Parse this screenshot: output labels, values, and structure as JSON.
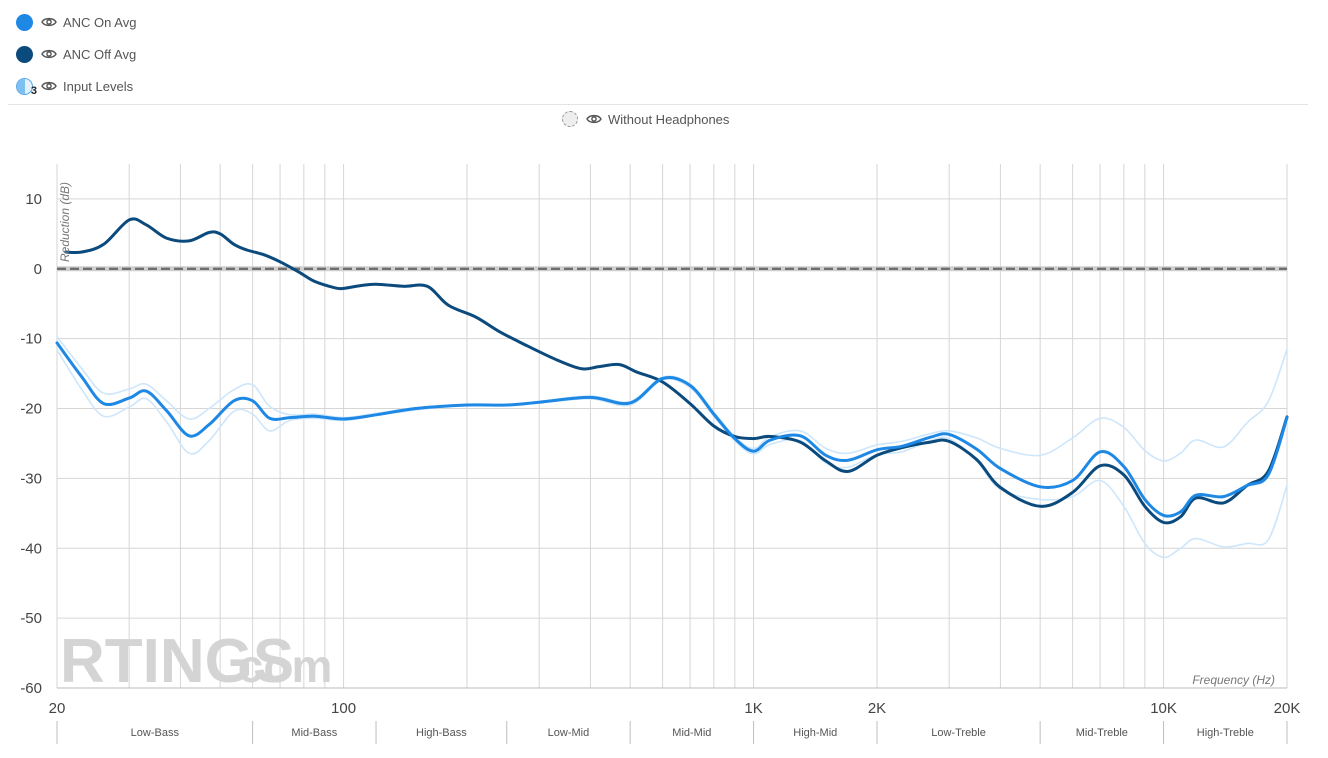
{
  "legend": {
    "series": [
      {
        "label": "ANC On Avg",
        "color": "#1e88e5"
      },
      {
        "label": "ANC Off Avg",
        "color": "#0b4a7d"
      },
      {
        "label": "Input Levels",
        "count": "3",
        "color": "#bfe0fb"
      }
    ],
    "reference": {
      "label": "Without Headphones"
    }
  },
  "watermark": {
    "brand": "RTINGS",
    "suffix": ".com"
  },
  "chart_data": {
    "type": "line",
    "title": "",
    "xlabel": "Frequency (Hz)",
    "ylabel": "Reduction (dB)",
    "xscale": "log",
    "xlim": [
      20,
      20000
    ],
    "ylim": [
      -60,
      15
    ],
    "x_tick_labels": [
      {
        "value": 20,
        "label": "20"
      },
      {
        "value": 100,
        "label": "100"
      },
      {
        "value": 1000,
        "label": "1K"
      },
      {
        "value": 2000,
        "label": "2K"
      },
      {
        "value": 10000,
        "label": "10K"
      },
      {
        "value": 20000,
        "label": "20K"
      }
    ],
    "y_ticks": [
      10,
      0,
      -10,
      -20,
      -30,
      -40,
      -50,
      -60
    ],
    "bands": [
      {
        "label": "Low-Bass",
        "from": 20,
        "to": 60
      },
      {
        "label": "Mid-Bass",
        "from": 60,
        "to": 120
      },
      {
        "label": "High-Bass",
        "from": 120,
        "to": 250
      },
      {
        "label": "Low-Mid",
        "from": 250,
        "to": 500
      },
      {
        "label": "Mid-Mid",
        "from": 500,
        "to": 1000
      },
      {
        "label": "High-Mid",
        "from": 1000,
        "to": 2000
      },
      {
        "label": "Low-Treble",
        "from": 2000,
        "to": 5000
      },
      {
        "label": "Mid-Treble",
        "from": 5000,
        "to": 10000
      },
      {
        "label": "High-Treble",
        "from": 10000,
        "to": 20000
      }
    ],
    "reference_line": {
      "name": "Without Headphones",
      "value": 0
    },
    "series": [
      {
        "name": "Input Levels (upper)",
        "color": "#cde6fb",
        "width": 1.6,
        "points": [
          [
            20,
            -9.7
          ],
          [
            23,
            -14.3
          ],
          [
            26,
            -17.8
          ],
          [
            30,
            -17.2
          ],
          [
            33,
            -16.5
          ],
          [
            37,
            -18.9
          ],
          [
            42,
            -21.5
          ],
          [
            47,
            -20.0
          ],
          [
            54,
            -17.3
          ],
          [
            60,
            -16.6
          ],
          [
            66,
            -19.7
          ],
          [
            74,
            -20.9
          ],
          [
            85,
            -20.8
          ],
          [
            100,
            -21.3
          ],
          [
            120,
            -20.7
          ],
          [
            150,
            -19.9
          ],
          [
            200,
            -19.6
          ],
          [
            250,
            -19.5
          ],
          [
            300,
            -19.0
          ],
          [
            400,
            -18.2
          ],
          [
            500,
            -19.0
          ],
          [
            600,
            -15.5
          ],
          [
            700,
            -16.5
          ],
          [
            800,
            -20.5
          ],
          [
            900,
            -24.0
          ],
          [
            1000,
            -25.7
          ],
          [
            1100,
            -24.0
          ],
          [
            1300,
            -23.2
          ],
          [
            1500,
            -25.7
          ],
          [
            1700,
            -26.4
          ],
          [
            2000,
            -25.2
          ],
          [
            2300,
            -24.7
          ],
          [
            2700,
            -23.6
          ],
          [
            3000,
            -23.2
          ],
          [
            3500,
            -24.2
          ],
          [
            4000,
            -25.7
          ],
          [
            5000,
            -26.7
          ],
          [
            6000,
            -24.2
          ],
          [
            7000,
            -21.4
          ],
          [
            8000,
            -22.7
          ],
          [
            9000,
            -26.0
          ],
          [
            10000,
            -27.5
          ],
          [
            11000,
            -26.4
          ],
          [
            12000,
            -24.5
          ],
          [
            14000,
            -25.5
          ],
          [
            16000,
            -22.0
          ],
          [
            18000,
            -19.0
          ],
          [
            20000,
            -11.5
          ]
        ]
      },
      {
        "name": "Input Levels (lower)",
        "color": "#cde6fb",
        "width": 1.6,
        "points": [
          [
            20,
            -11.6
          ],
          [
            23,
            -17.3
          ],
          [
            26,
            -21.1
          ],
          [
            30,
            -19.8
          ],
          [
            33,
            -18.6
          ],
          [
            37,
            -21.9
          ],
          [
            42,
            -26.4
          ],
          [
            47,
            -24.6
          ],
          [
            54,
            -20.4
          ],
          [
            60,
            -20.8
          ],
          [
            66,
            -23.2
          ],
          [
            74,
            -21.7
          ],
          [
            85,
            -21.4
          ],
          [
            100,
            -21.7
          ],
          [
            120,
            -21.0
          ],
          [
            150,
            -20.2
          ],
          [
            200,
            -19.5
          ],
          [
            250,
            -19.6
          ],
          [
            300,
            -19.2
          ],
          [
            400,
            -18.6
          ],
          [
            500,
            -19.5
          ],
          [
            600,
            -15.9
          ],
          [
            700,
            -17.0
          ],
          [
            800,
            -21.1
          ],
          [
            900,
            -24.6
          ],
          [
            1000,
            -26.5
          ],
          [
            1100,
            -25.1
          ],
          [
            1300,
            -24.6
          ],
          [
            1500,
            -27.8
          ],
          [
            1700,
            -28.4
          ],
          [
            2000,
            -26.6
          ],
          [
            2300,
            -26.2
          ],
          [
            2700,
            -24.6
          ],
          [
            3000,
            -24.3
          ],
          [
            3500,
            -27.5
          ],
          [
            4000,
            -31.6
          ],
          [
            5000,
            -33.0
          ],
          [
            6000,
            -32.6
          ],
          [
            7000,
            -30.3
          ],
          [
            8000,
            -34.0
          ],
          [
            9000,
            -39.3
          ],
          [
            10000,
            -41.3
          ],
          [
            11000,
            -40.0
          ],
          [
            12000,
            -38.6
          ],
          [
            14000,
            -39.8
          ],
          [
            16000,
            -39.3
          ],
          [
            18000,
            -38.8
          ],
          [
            20000,
            -31.0
          ]
        ]
      },
      {
        "name": "ANC Off Avg",
        "color": "#0b4a7d",
        "width": 3,
        "points": [
          [
            21,
            2.4
          ],
          [
            23,
            2.4
          ],
          [
            26,
            3.5
          ],
          [
            30,
            7.0
          ],
          [
            33,
            6.3
          ],
          [
            37,
            4.4
          ],
          [
            42,
            4.0
          ],
          [
            47,
            5.2
          ],
          [
            50,
            5.0
          ],
          [
            54,
            3.5
          ],
          [
            58,
            2.7
          ],
          [
            64,
            2.0
          ],
          [
            70,
            1.0
          ],
          [
            78,
            -0.5
          ],
          [
            85,
            -1.8
          ],
          [
            95,
            -2.7
          ],
          [
            100,
            -2.8
          ],
          [
            110,
            -2.4
          ],
          [
            120,
            -2.2
          ],
          [
            140,
            -2.5
          ],
          [
            160,
            -2.5
          ],
          [
            180,
            -5.2
          ],
          [
            210,
            -6.9
          ],
          [
            240,
            -9.0
          ],
          [
            280,
            -11.0
          ],
          [
            330,
            -13.0
          ],
          [
            380,
            -14.3
          ],
          [
            420,
            -14.0
          ],
          [
            470,
            -13.7
          ],
          [
            520,
            -14.8
          ],
          [
            600,
            -16.2
          ],
          [
            700,
            -19.3
          ],
          [
            800,
            -22.5
          ],
          [
            900,
            -24.0
          ],
          [
            1000,
            -24.3
          ],
          [
            1100,
            -24.0
          ],
          [
            1300,
            -24.8
          ],
          [
            1500,
            -27.5
          ],
          [
            1700,
            -29.0
          ],
          [
            2000,
            -26.7
          ],
          [
            2300,
            -25.6
          ],
          [
            2700,
            -24.8
          ],
          [
            3000,
            -24.7
          ],
          [
            3500,
            -27.3
          ],
          [
            4000,
            -31.3
          ],
          [
            5000,
            -34.0
          ],
          [
            6000,
            -32.0
          ],
          [
            7000,
            -28.2
          ],
          [
            8000,
            -29.5
          ],
          [
            9000,
            -34.0
          ],
          [
            10000,
            -36.3
          ],
          [
            11000,
            -35.5
          ],
          [
            12000,
            -32.8
          ],
          [
            14000,
            -33.5
          ],
          [
            16000,
            -31.0
          ],
          [
            18000,
            -29.0
          ],
          [
            20000,
            -21.2
          ]
        ]
      },
      {
        "name": "ANC On Avg",
        "color": "#1e88e5",
        "width": 3,
        "points": [
          [
            20,
            -10.6
          ],
          [
            23,
            -15.5
          ],
          [
            26,
            -19.3
          ],
          [
            30,
            -18.5
          ],
          [
            33,
            -17.5
          ],
          [
            37,
            -20.3
          ],
          [
            42,
            -23.9
          ],
          [
            47,
            -22.3
          ],
          [
            54,
            -18.9
          ],
          [
            60,
            -18.9
          ],
          [
            66,
            -21.4
          ],
          [
            74,
            -21.3
          ],
          [
            85,
            -21.1
          ],
          [
            100,
            -21.5
          ],
          [
            120,
            -20.9
          ],
          [
            150,
            -20.0
          ],
          [
            200,
            -19.5
          ],
          [
            250,
            -19.5
          ],
          [
            300,
            -19.1
          ],
          [
            400,
            -18.4
          ],
          [
            500,
            -19.2
          ],
          [
            600,
            -15.7
          ],
          [
            700,
            -16.7
          ],
          [
            800,
            -20.8
          ],
          [
            900,
            -24.3
          ],
          [
            1000,
            -26.1
          ],
          [
            1100,
            -24.5
          ],
          [
            1300,
            -23.9
          ],
          [
            1500,
            -26.7
          ],
          [
            1700,
            -27.4
          ],
          [
            2000,
            -25.9
          ],
          [
            2300,
            -25.4
          ],
          [
            2700,
            -24.1
          ],
          [
            3000,
            -23.7
          ],
          [
            3500,
            -25.8
          ],
          [
            4000,
            -28.6
          ],
          [
            5000,
            -31.2
          ],
          [
            6000,
            -30.3
          ],
          [
            7000,
            -26.2
          ],
          [
            8000,
            -28.3
          ],
          [
            9000,
            -33.0
          ],
          [
            10000,
            -35.3
          ],
          [
            11000,
            -34.8
          ],
          [
            12000,
            -32.4
          ],
          [
            14000,
            -32.6
          ],
          [
            16000,
            -31.0
          ],
          [
            18000,
            -29.5
          ],
          [
            20000,
            -21.3
          ]
        ]
      }
    ]
  }
}
